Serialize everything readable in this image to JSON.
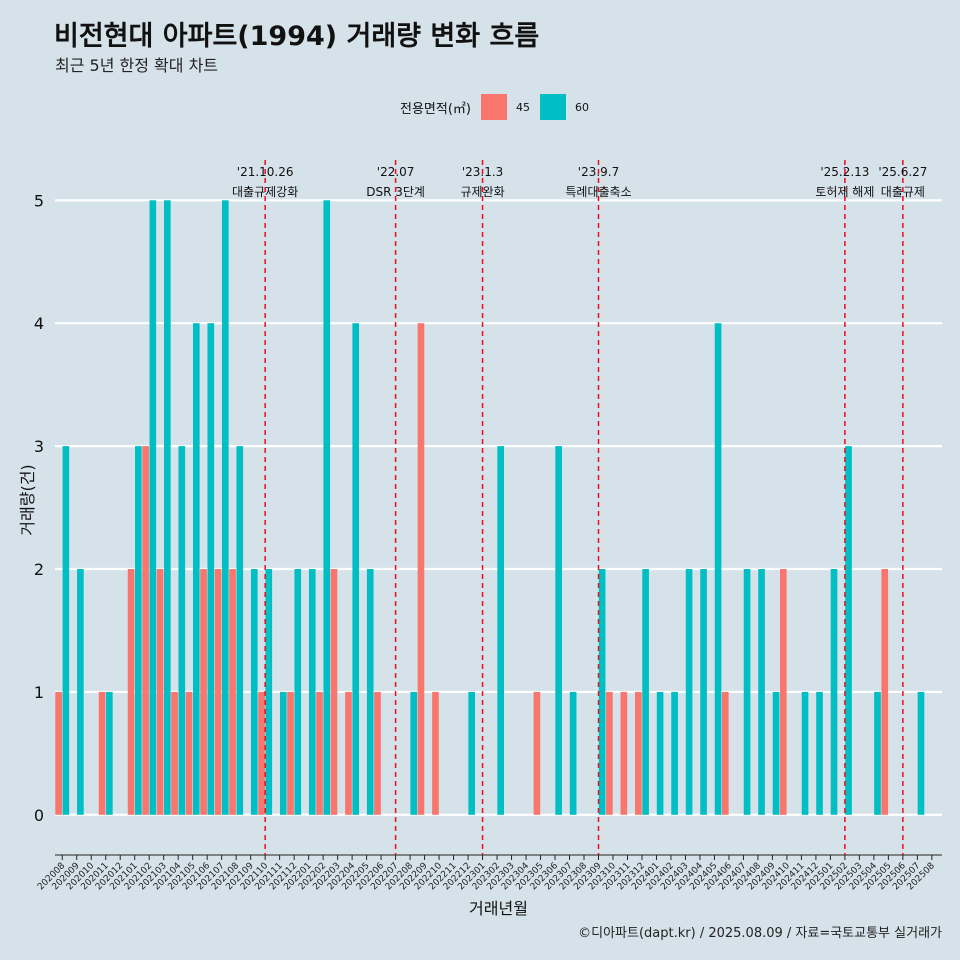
{
  "header": {
    "title": "비전현대 아파트(1994) 거래량 변화 흐름",
    "subtitle": "최근 5년 한정 확대 차트"
  },
  "caption": "©디아파트(dapt.kr) / 2025.08.09 / 자료=국토교통부 실거래가",
  "legend": {
    "title": "전용면적(㎡)",
    "items": [
      {
        "label": "45",
        "color": "#f8766d"
      },
      {
        "label": "60",
        "color": "#00bfc4"
      }
    ]
  },
  "chart_data": {
    "type": "bar",
    "xlabel": "거래년월",
    "ylabel": "거래량(건)",
    "ylim": [
      0,
      5
    ],
    "yticks": [
      0,
      1,
      2,
      3,
      4,
      5
    ],
    "grid": true,
    "legend_position": "top",
    "categories": [
      "202008",
      "202009",
      "202010",
      "202011",
      "202012",
      "202101",
      "202102",
      "202103",
      "202104",
      "202105",
      "202106",
      "202107",
      "202108",
      "202109",
      "202110",
      "202111",
      "202112",
      "202201",
      "202202",
      "202203",
      "202204",
      "202205",
      "202206",
      "202207",
      "202208",
      "202209",
      "202210",
      "202211",
      "202212",
      "202301",
      "202302",
      "202303",
      "202304",
      "202305",
      "202306",
      "202307",
      "202308",
      "202309",
      "202310",
      "202311",
      "202312",
      "202401",
      "202402",
      "202403",
      "202404",
      "202405",
      "202406",
      "202407",
      "202408",
      "202409",
      "202410",
      "202411",
      "202412",
      "202501",
      "202502",
      "202503",
      "202504",
      "202505",
      "202506",
      "202507",
      "202508"
    ],
    "series": [
      {
        "name": "45",
        "color": "#f8766d",
        "values": [
          1,
          0,
          0,
          1,
          0,
          2,
          3,
          2,
          1,
          1,
          2,
          2,
          2,
          0,
          1,
          0,
          1,
          0,
          1,
          2,
          1,
          0,
          1,
          0,
          0,
          4,
          1,
          0,
          0,
          0,
          0,
          0,
          0,
          1,
          0,
          0,
          0,
          0,
          1,
          1,
          1,
          0,
          0,
          0,
          0,
          0,
          1,
          0,
          0,
          0,
          2,
          0,
          0,
          0,
          0,
          0,
          0,
          2,
          0,
          0,
          0
        ]
      },
      {
        "name": "60",
        "color": "#00bfc4",
        "values": [
          3,
          2,
          0,
          1,
          0,
          3,
          5,
          5,
          3,
          4,
          4,
          5,
          3,
          2,
          2,
          1,
          2,
          2,
          5,
          0,
          4,
          2,
          0,
          0,
          1,
          0,
          0,
          0,
          1,
          0,
          3,
          0,
          0,
          0,
          3,
          1,
          0,
          2,
          0,
          0,
          2,
          1,
          1,
          2,
          2,
          4,
          0,
          2,
          2,
          1,
          0,
          1,
          1,
          2,
          3,
          0,
          1,
          0,
          0,
          1,
          0
        ]
      }
    ],
    "annotations": [
      {
        "x": "202110",
        "date": "'21.10.26",
        "text": "대출규제강화"
      },
      {
        "x": "202207",
        "date": "'22.07",
        "text": "DSR 3단계"
      },
      {
        "x": "202301",
        "date": "'23.1.3",
        "text": "규제완화"
      },
      {
        "x": "202309",
        "date": "'23.9.7",
        "text": "특례대출축소"
      },
      {
        "x": "202502",
        "date": "'25.2.13",
        "text": "토허제 해제"
      },
      {
        "x": "202506",
        "date": "'25.6.27",
        "text": "대출규제"
      }
    ],
    "annotation_line_color": "#e8101d"
  }
}
